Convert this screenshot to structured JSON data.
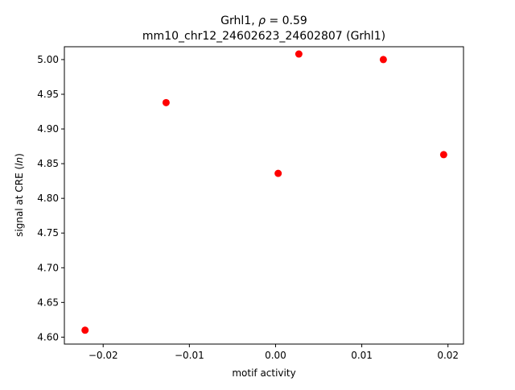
{
  "chart_data": {
    "type": "scatter",
    "title_line1": "Grhl1, ρ = 0.59",
    "title_line2": "mm10_chr12_24602623_24602807 (Grhl1)",
    "xlabel": "motif activity",
    "ylabel": "signal at CRE (ln)",
    "xlim": [
      -0.0245,
      0.0218
    ],
    "ylim": [
      4.59,
      5.0185
    ],
    "xticks": [
      -0.02,
      -0.01,
      0.0,
      0.01,
      0.02
    ],
    "xtick_labels": [
      "−0.02",
      "−0.01",
      "0.00",
      "0.01",
      "0.02"
    ],
    "yticks": [
      4.6,
      4.65,
      4.7,
      4.75,
      4.8,
      4.85,
      4.9,
      4.95,
      5.0
    ],
    "ytick_labels": [
      "4.60",
      "4.65",
      "4.70",
      "4.75",
      "4.80",
      "4.85",
      "4.90",
      "4.95",
      "5.00"
    ],
    "points": [
      {
        "x": -0.0221,
        "y": 4.61
      },
      {
        "x": -0.0127,
        "y": 4.938
      },
      {
        "x": 0.0003,
        "y": 4.836
      },
      {
        "x": 0.0027,
        "y": 5.008
      },
      {
        "x": 0.0125,
        "y": 5.0
      },
      {
        "x": 0.0195,
        "y": 4.863
      }
    ],
    "marker_color": "#ff0000",
    "grid": false,
    "legend": "none"
  }
}
